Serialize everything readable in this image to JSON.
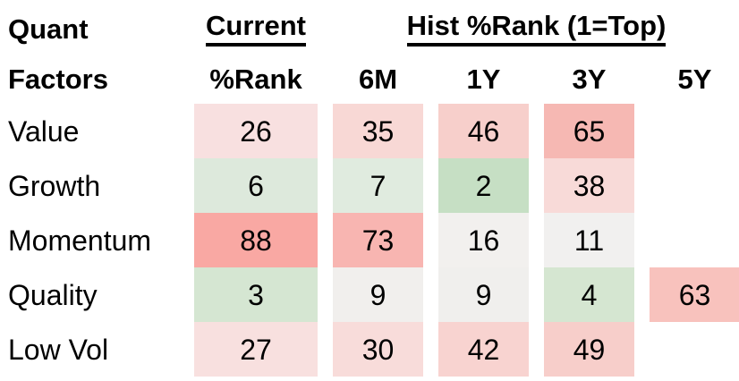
{
  "table": {
    "corner_title_line1": "Quant",
    "corner_title_line2": "Factors",
    "group_headers": {
      "current": "Current",
      "hist": "Hist %Rank (1=Top)"
    },
    "col_headers": {
      "current_sub": "%Rank",
      "h6m": "6M",
      "h1y": "1Y",
      "h3y": "3Y",
      "h5y": "5Y"
    },
    "rows": [
      {
        "label": "Value",
        "cells": [
          {
            "v": "26",
            "bg": "#f8e0e0"
          },
          {
            "v": "35",
            "bg": "#f8d8d5"
          },
          {
            "v": "46",
            "bg": "#f7cfcb"
          },
          {
            "v": "65",
            "bg": "#f6b8b3"
          },
          {
            "v": "",
            "bg": ""
          }
        ]
      },
      {
        "label": "Growth",
        "cells": [
          {
            "v": "6",
            "bg": "#dde9dc"
          },
          {
            "v": "7",
            "bg": "#e0ebdf"
          },
          {
            "v": "2",
            "bg": "#c6dfc4"
          },
          {
            "v": "38",
            "bg": "#f8dad8"
          },
          {
            "v": "",
            "bg": ""
          }
        ]
      },
      {
        "label": "Momentum",
        "cells": [
          {
            "v": "88",
            "bg": "#f9a8a3"
          },
          {
            "v": "73",
            "bg": "#f8b5b1"
          },
          {
            "v": "16",
            "bg": "#f2f0ee"
          },
          {
            "v": "11",
            "bg": "#f1f0ef"
          },
          {
            "v": "",
            "bg": ""
          }
        ]
      },
      {
        "label": "Quality",
        "cells": [
          {
            "v": "3",
            "bg": "#d5e6d2"
          },
          {
            "v": "9",
            "bg": "#f1efed"
          },
          {
            "v": "9",
            "bg": "#f0efed"
          },
          {
            "v": "4",
            "bg": "#d5e6d1"
          },
          {
            "v": "63",
            "bg": "#f8c2bd"
          }
        ]
      },
      {
        "label": "Low Vol",
        "cells": [
          {
            "v": "27",
            "bg": "#f8e0df"
          },
          {
            "v": "30",
            "bg": "#f8dcda"
          },
          {
            "v": "42",
            "bg": "#f8d3d0"
          },
          {
            "v": "49",
            "bg": "#f7ceca"
          },
          {
            "v": "",
            "bg": ""
          }
        ]
      }
    ]
  },
  "chart_data": {
    "type": "heatmap",
    "title": "Quant Factors",
    "column_groups": [
      "Current",
      "Hist %Rank (1=Top)"
    ],
    "columns": [
      "Current %Rank",
      "6M",
      "1Y",
      "3Y",
      "5Y"
    ],
    "rows": [
      "Value",
      "Growth",
      "Momentum",
      "Quality",
      "Low Vol"
    ],
    "values": [
      [
        26,
        35,
        46,
        65,
        null
      ],
      [
        6,
        7,
        2,
        38,
        null
      ],
      [
        88,
        73,
        16,
        11,
        null
      ],
      [
        3,
        9,
        9,
        4,
        63
      ],
      [
        27,
        30,
        42,
        49,
        null
      ]
    ],
    "scale_note": "1=Top; low percentile = green, ~10-15 = white, high percentile = red",
    "colors": {
      "low": "#c6dfc4",
      "mid": "#f1f0ef",
      "high": "#f9a8a3"
    }
  }
}
